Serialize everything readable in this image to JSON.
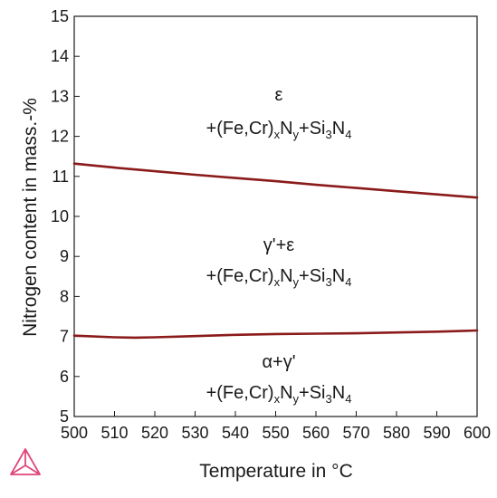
{
  "chart_data": {
    "type": "line",
    "xlabel": "Temperature in °C",
    "ylabel": "Nitrogen content in mass.-%",
    "xlim": [
      500,
      600
    ],
    "ylim": [
      5,
      15
    ],
    "x_ticks": [
      500,
      510,
      520,
      530,
      540,
      550,
      560,
      570,
      580,
      590,
      600
    ],
    "y_ticks": [
      5,
      6,
      7,
      8,
      9,
      10,
      11,
      12,
      13,
      14,
      15
    ],
    "grid": false,
    "line_color": "#8b1a1a",
    "series": [
      {
        "x": [
          500,
          510,
          520,
          530,
          540,
          550,
          560,
          570,
          580,
          590,
          600
        ],
        "y": [
          11.32,
          11.22,
          11.13,
          11.04,
          10.96,
          10.88,
          10.79,
          10.71,
          10.63,
          10.55,
          10.47
        ]
      },
      {
        "x": [
          500,
          510,
          515,
          520,
          530,
          540,
          550,
          560,
          570,
          580,
          590,
          600
        ],
        "y": [
          7.02,
          6.98,
          6.97,
          6.98,
          7.01,
          7.04,
          7.06,
          7.07,
          7.08,
          7.1,
          7.12,
          7.15
        ]
      }
    ],
    "region_labels": [
      {
        "phase": "ε",
        "compound": {
          "p1": "+(Fe,Cr)",
          "s1": "x",
          "p2": "N",
          "s2": "y",
          "p3": "+Si",
          "s3": "3",
          "p4": "N",
          "s4": "4"
        }
      },
      {
        "phase": "γ'+ε",
        "compound": {
          "p1": "+(Fe,Cr)",
          "s1": "x",
          "p2": "N",
          "s2": "y",
          "p3": "+Si",
          "s3": "3",
          "p4": "N",
          "s4": "4"
        }
      },
      {
        "phase": "α+γ'",
        "compound": {
          "p1": "+(Fe,Cr)",
          "s1": "x",
          "p2": "N",
          "s2": "y",
          "p3": "+Si",
          "s3": "3",
          "p4": "N",
          "s4": "4"
        }
      }
    ]
  },
  "logo": {
    "name": "thermo-calc-triangle-icon",
    "color": "#e0457b"
  }
}
